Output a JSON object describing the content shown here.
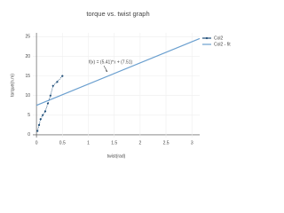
{
  "chart_data": {
    "type": "line",
    "title": "torque vs. twist graph",
    "x_label": "twist(rad)",
    "y_label": "torque(n.m)",
    "annotation": "f(x) = (5.41)*x + (7.51)",
    "series": [
      {
        "name": "Col2",
        "color": "#1f4e79",
        "markers": true,
        "x": [
          0.02,
          0.05,
          0.08,
          0.12,
          0.17,
          0.22,
          0.27,
          0.32,
          0.4,
          0.5
        ],
        "values": [
          1,
          2.5,
          4,
          5,
          6,
          8,
          10,
          12.5,
          13.5,
          15
        ]
      },
      {
        "name": "Col2 - fit",
        "color": "#6a9fcf",
        "markers": false,
        "x": [
          0,
          3.15
        ],
        "values": [
          7.51,
          24.55
        ]
      }
    ],
    "xlim": [
      -0.07,
      3.15
    ],
    "ylim": [
      -0.7,
      26
    ],
    "xticks": [
      0,
      0.5,
      1,
      1.5,
      2,
      2.5,
      3
    ],
    "yticks": [
      0,
      5,
      10,
      15,
      20,
      25
    ],
    "grid": true
  }
}
